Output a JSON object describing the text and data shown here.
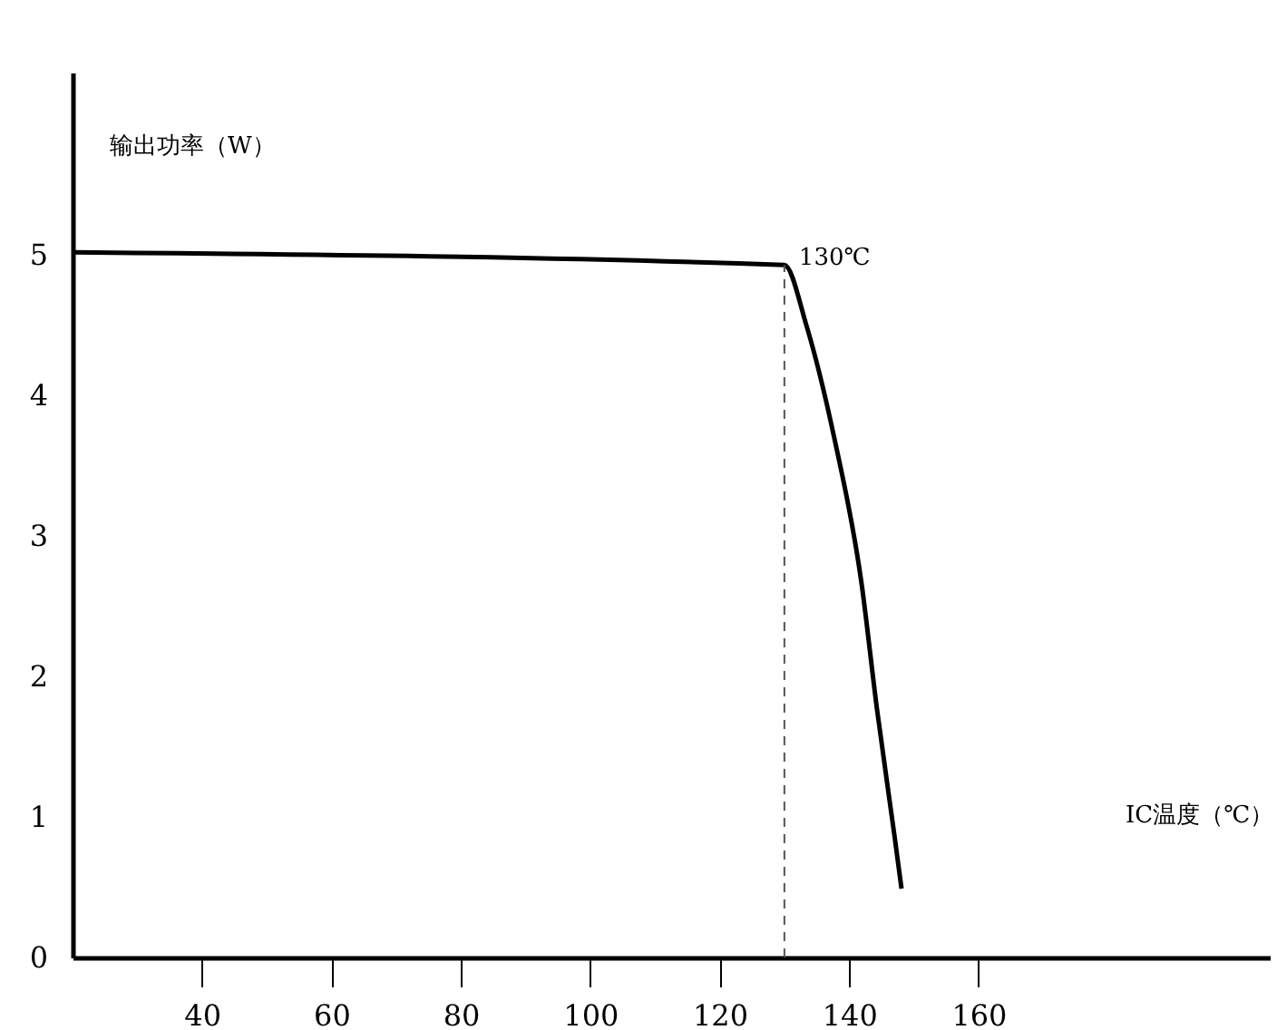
{
  "chart_data": {
    "type": "line",
    "xlabel": "IC温度（℃）",
    "ylabel": "输出功率（W）",
    "x": [
      20,
      130,
      133.4,
      137.7,
      141.9,
      144.3,
      147,
      148.1
    ],
    "series": [
      {
        "color": "#000000",
        "values": [
          5.02,
          4.93,
          4.5,
          3.7,
          2.67,
          1.77,
          0.87,
          0.49
        ]
      }
    ],
    "xlim": [
      20,
      205
    ],
    "ylim": [
      0,
      6.3
    ],
    "xticks": [
      40,
      60,
      80,
      100,
      120,
      140,
      160
    ],
    "yticks": [
      0,
      1,
      2,
      3,
      4,
      5
    ],
    "ref_lines": [
      {
        "axis": "x",
        "value": 130,
        "color": "#555555",
        "line_style": "dashed"
      }
    ],
    "annotations": [
      {
        "text": "130℃",
        "x": 130,
        "y": 4.93
      }
    ],
    "grid": false,
    "marker": "none",
    "line_style": "solid"
  }
}
